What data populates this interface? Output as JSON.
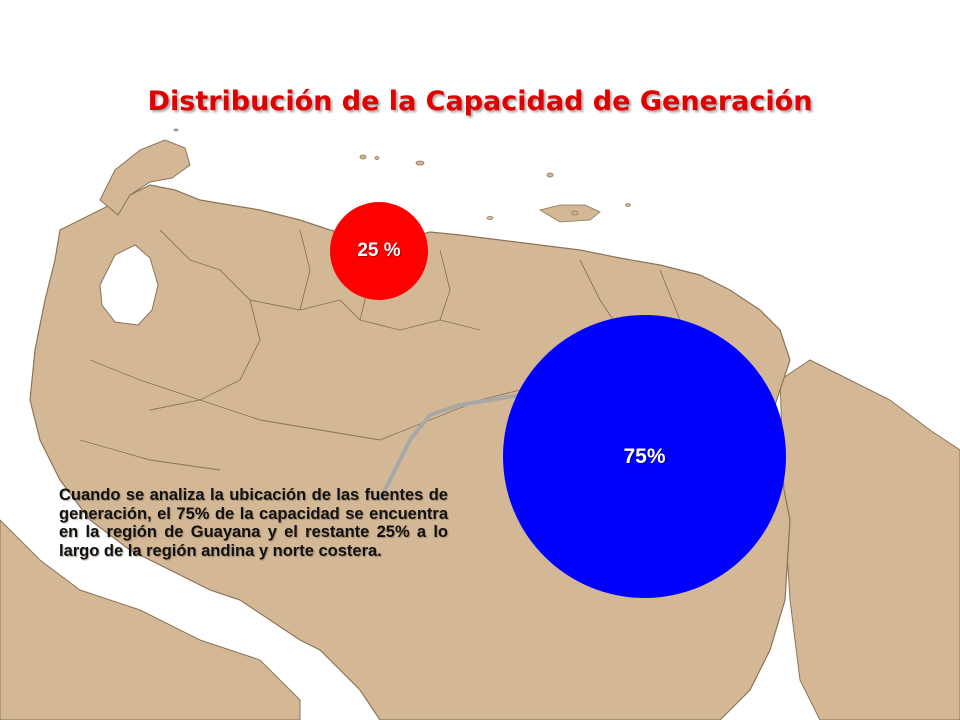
{
  "slide": {
    "title": "Distribución de la Capacidad de Generación",
    "description": "Cuando se analiza la ubicación de las fuentes de generación, el 75% de la capacidad se encuentra en la región de Guayana y el restante 25% a lo largo de la región andina y norte costera."
  },
  "bubbles": {
    "north": {
      "label": "25 %",
      "color": "#ff0000"
    },
    "guayana": {
      "label": "75%",
      "color": "#0000ff"
    }
  },
  "colors": {
    "map_fill": "#d4b896",
    "map_border": "#8c7458",
    "title": "#e00000",
    "river": "#a8a8a8"
  }
}
